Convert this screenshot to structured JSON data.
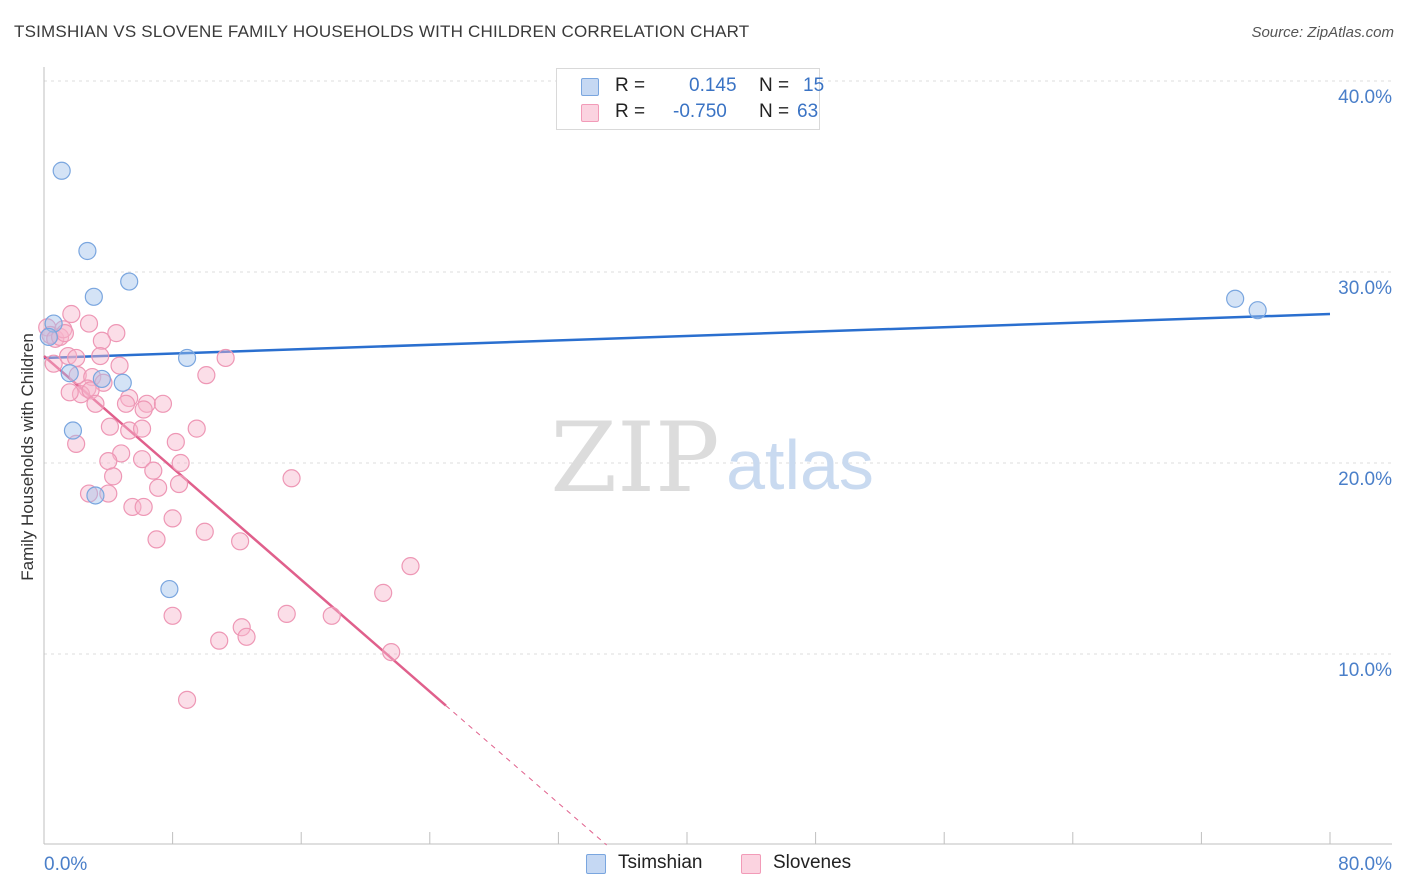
{
  "title": "TSIMSHIAN VS SLOVENE FAMILY HOUSEHOLDS WITH CHILDREN CORRELATION CHART",
  "source": "Source: ZipAtlas.com",
  "watermark": {
    "zip": "ZIP",
    "atlas": "atlas"
  },
  "legend": {
    "rows": [
      {
        "r_label": "R =",
        "r_value": "0.145",
        "n_label": "N =",
        "n_value": "15",
        "color": "#7aa6df"
      },
      {
        "r_label": "R =",
        "r_value": "-0.750",
        "n_label": "N =",
        "n_value": "63",
        "color": "#f29bb8"
      }
    ]
  },
  "bottom_legend": [
    {
      "label": "Tsimshian",
      "color": "#7aa6df"
    },
    {
      "label": "Slovenes",
      "color": "#f29bb8"
    }
  ],
  "chart_data": {
    "type": "scatter",
    "title": "TSIMSHIAN VS SLOVENE FAMILY HOUSEHOLDS WITH CHILDREN CORRELATION CHART",
    "xlabel": "",
    "ylabel": "Family Households with Children",
    "xlim": [
      0,
      80
    ],
    "ylim": [
      0,
      40.5
    ],
    "x_tick_labels": [
      "0.0%",
      "80.0%"
    ],
    "y_ticks": [
      10,
      20,
      30,
      40
    ],
    "y_tick_labels": [
      "10.0%",
      "20.0%",
      "30.0%",
      "40.0%"
    ],
    "grid": true,
    "series": [
      {
        "name": "Tsimshian",
        "color": "#7aa6df",
        "line_color": "#2a6fcf",
        "points": [
          [
            1.1,
            35.3
          ],
          [
            2.7,
            31.1
          ],
          [
            5.3,
            29.5
          ],
          [
            3.1,
            28.7
          ],
          [
            0.6,
            27.3
          ],
          [
            0.3,
            26.6
          ],
          [
            8.9,
            25.5
          ],
          [
            1.6,
            24.7
          ],
          [
            3.6,
            24.4
          ],
          [
            4.9,
            24.2
          ],
          [
            1.8,
            21.7
          ],
          [
            3.2,
            18.3
          ],
          [
            7.8,
            13.4
          ],
          [
            74.1,
            28.6
          ],
          [
            75.5,
            28.0
          ]
        ],
        "trend": {
          "x0": 0,
          "y0": 25.5,
          "x1": 80,
          "y1": 27.8
        }
      },
      {
        "name": "Slovenes",
        "color": "#f29bb8",
        "line_color": "#e0608c",
        "points": [
          [
            0.2,
            27.1
          ],
          [
            0.4,
            26.7
          ],
          [
            0.7,
            26.5
          ],
          [
            1.0,
            26.6
          ],
          [
            1.2,
            27.0
          ],
          [
            1.3,
            26.8
          ],
          [
            0.6,
            25.2
          ],
          [
            1.7,
            27.8
          ],
          [
            2.8,
            27.3
          ],
          [
            4.5,
            26.8
          ],
          [
            3.6,
            26.4
          ],
          [
            1.5,
            25.6
          ],
          [
            2.0,
            25.5
          ],
          [
            3.5,
            25.6
          ],
          [
            4.7,
            25.1
          ],
          [
            2.1,
            24.6
          ],
          [
            3.0,
            24.5
          ],
          [
            3.7,
            24.2
          ],
          [
            2.7,
            23.9
          ],
          [
            2.3,
            23.6
          ],
          [
            1.6,
            23.7
          ],
          [
            2.9,
            23.8
          ],
          [
            3.2,
            23.1
          ],
          [
            5.3,
            23.4
          ],
          [
            6.4,
            23.1
          ],
          [
            7.4,
            23.1
          ],
          [
            5.1,
            23.1
          ],
          [
            6.2,
            22.8
          ],
          [
            4.1,
            21.9
          ],
          [
            5.3,
            21.7
          ],
          [
            6.1,
            21.8
          ],
          [
            9.5,
            21.8
          ],
          [
            8.2,
            21.1
          ],
          [
            4.8,
            20.5
          ],
          [
            6.1,
            20.2
          ],
          [
            4.0,
            20.1
          ],
          [
            8.5,
            20.0
          ],
          [
            6.8,
            19.6
          ],
          [
            4.3,
            19.3
          ],
          [
            8.4,
            18.9
          ],
          [
            7.1,
            18.7
          ],
          [
            10.1,
            24.6
          ],
          [
            11.3,
            25.5
          ],
          [
            15.4,
            19.2
          ],
          [
            2.8,
            18.4
          ],
          [
            4.0,
            18.4
          ],
          [
            5.5,
            17.7
          ],
          [
            6.2,
            17.7
          ],
          [
            8.0,
            17.1
          ],
          [
            10.0,
            16.4
          ],
          [
            7.0,
            16.0
          ],
          [
            12.2,
            15.9
          ],
          [
            22.8,
            14.6
          ],
          [
            21.1,
            13.2
          ],
          [
            8.0,
            12.0
          ],
          [
            15.1,
            12.1
          ],
          [
            17.9,
            12.0
          ],
          [
            12.3,
            11.4
          ],
          [
            12.6,
            10.9
          ],
          [
            10.9,
            10.7
          ],
          [
            21.6,
            10.1
          ],
          [
            8.9,
            7.6
          ],
          [
            2.0,
            21.0
          ]
        ],
        "trend": {
          "x0": 0,
          "y0": 25.6,
          "x1": 25.0,
          "y1": 7.3
        },
        "trend_dashed": {
          "x0": 25.0,
          "y0": 7.3,
          "x1": 35.0,
          "y1": 0.0
        }
      }
    ]
  }
}
